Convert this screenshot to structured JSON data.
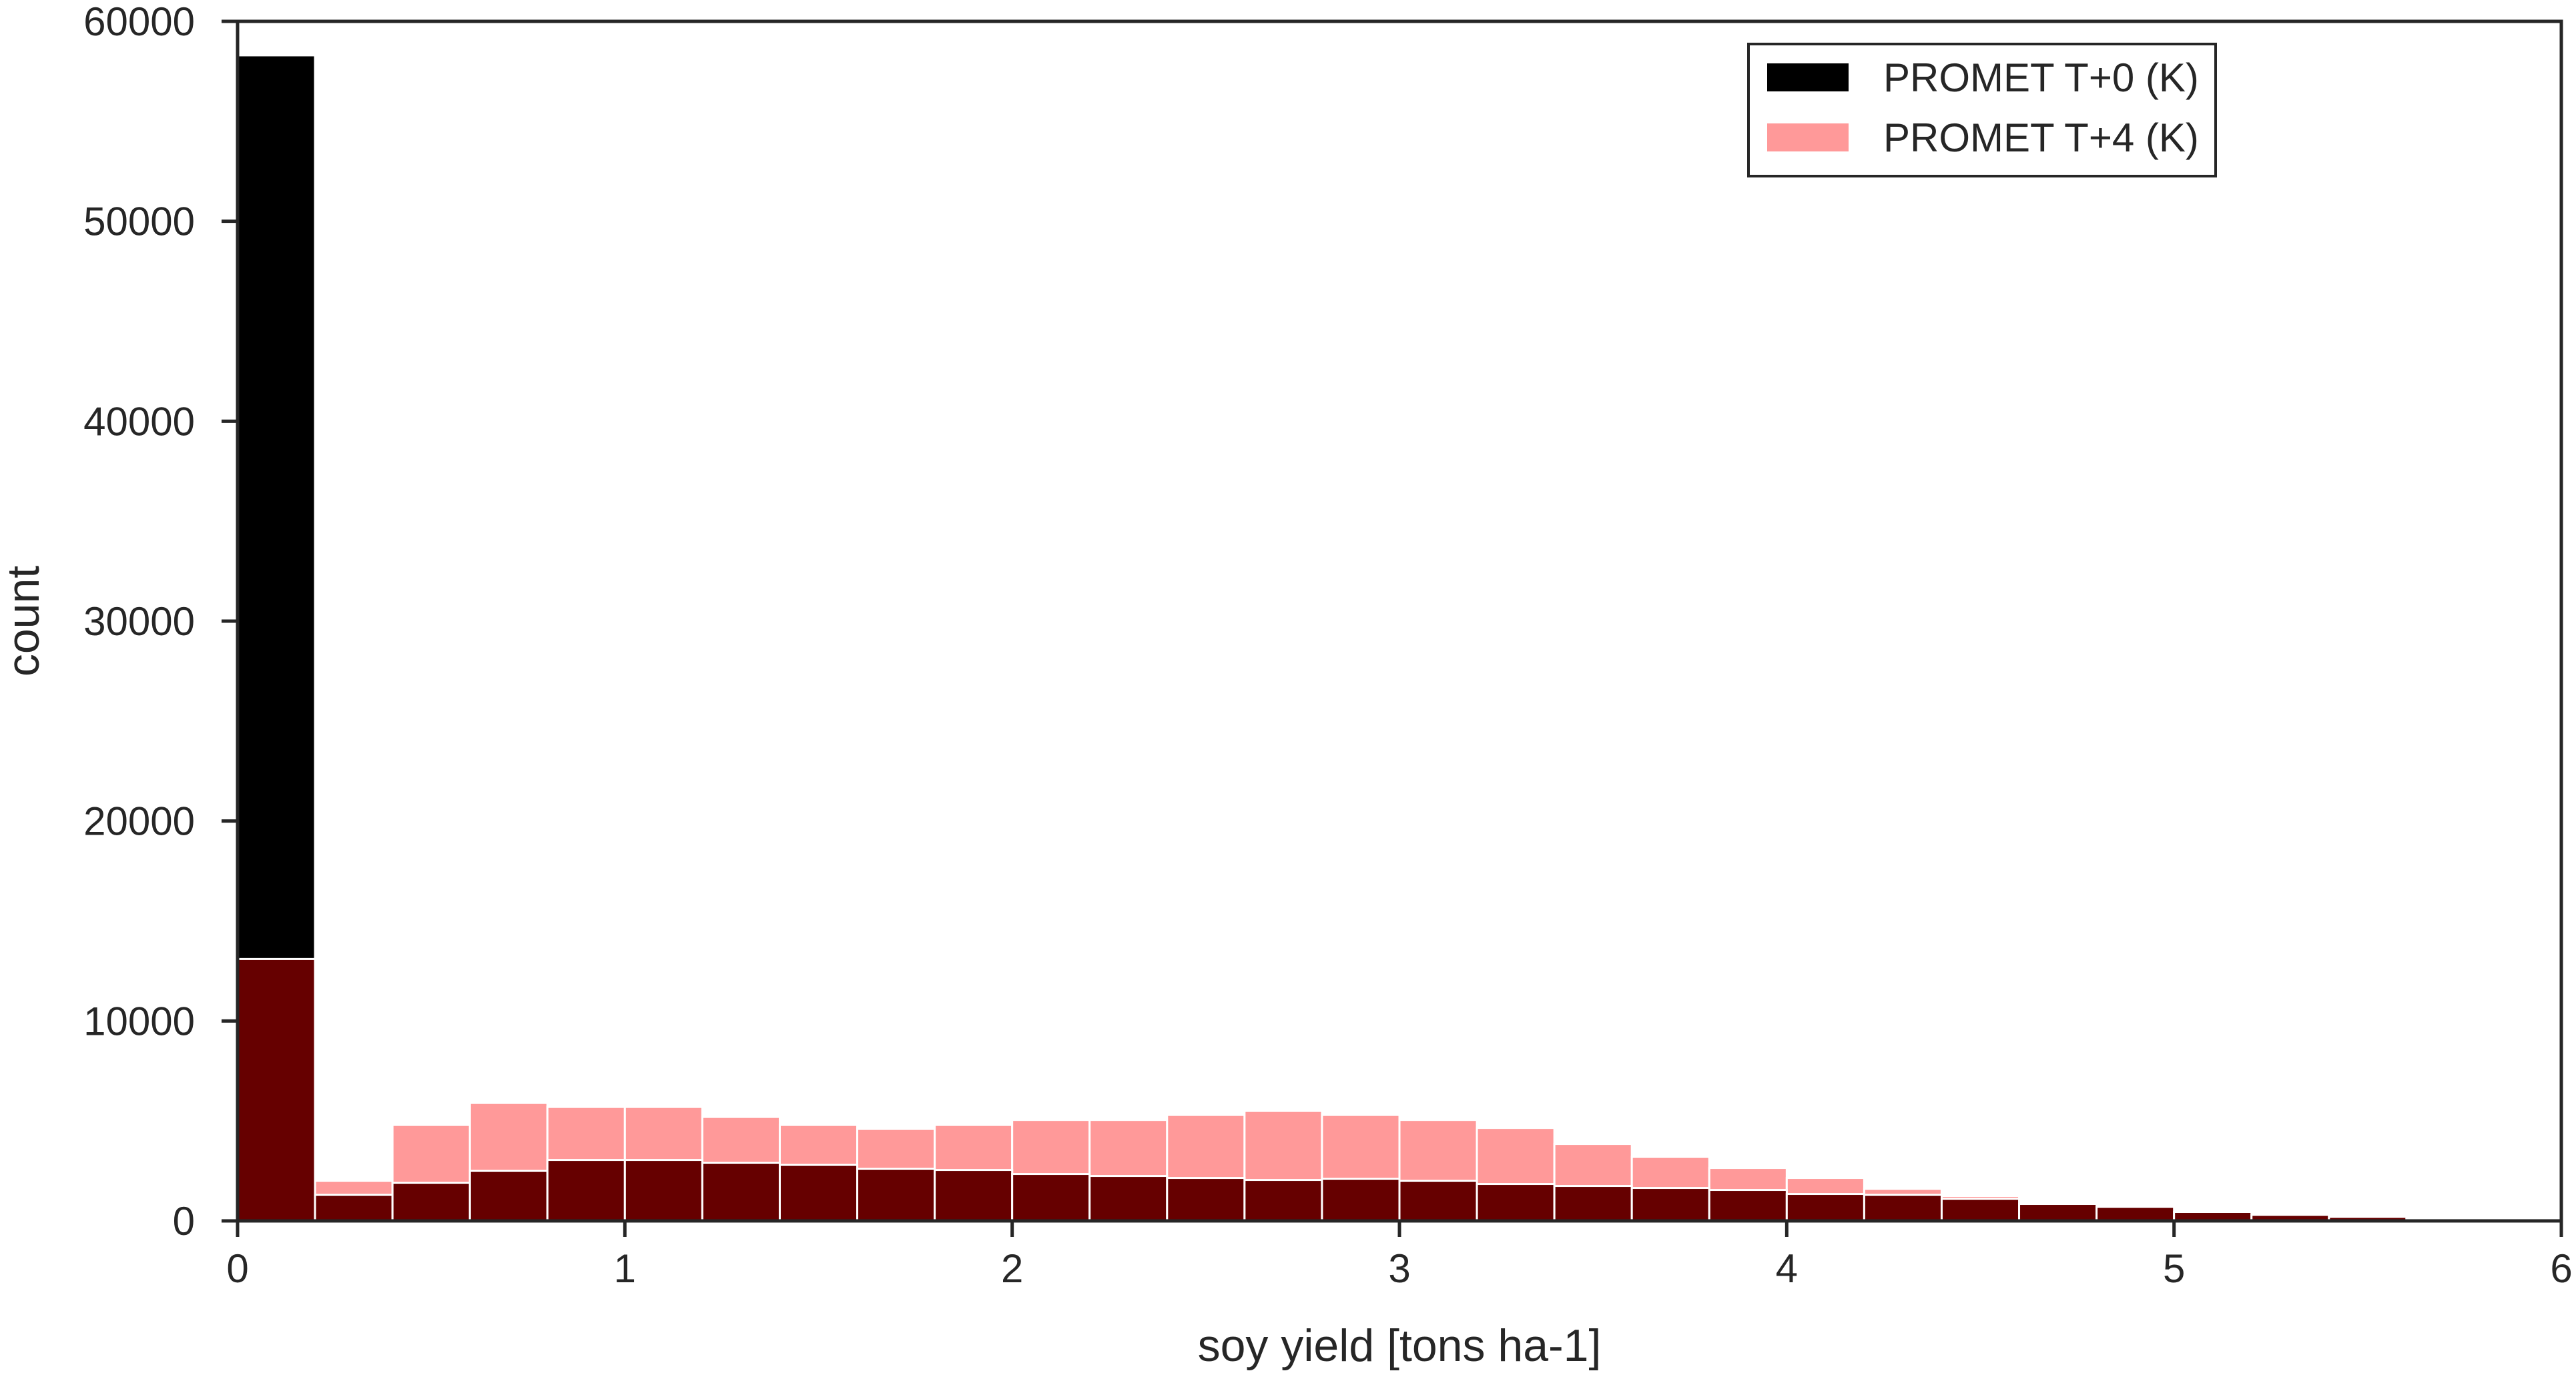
{
  "chart_data": {
    "type": "histogram",
    "title": "",
    "xlabel": "soy yield [tons ha-1]",
    "ylabel": "count",
    "xlim": [
      0,
      6
    ],
    "ylim": [
      0,
      60000
    ],
    "xticks": [
      "0",
      "1",
      "2",
      "3",
      "4",
      "5",
      "6"
    ],
    "yticks": [
      "0",
      "10000",
      "20000",
      "30000",
      "40000",
      "50000",
      "60000"
    ],
    "grid": false,
    "legend_position": "top-right",
    "bin_edges": [
      0,
      0.2,
      0.4,
      0.6,
      0.8,
      1.0,
      1.2,
      1.4,
      1.6,
      1.8,
      2.0,
      2.2,
      2.4,
      2.6,
      2.8,
      3.0,
      3.2,
      3.4,
      3.6,
      3.8,
      4.0,
      4.2,
      4.4,
      4.6,
      4.8,
      5.0,
      5.2,
      5.4,
      5.6,
      5.8
    ],
    "series": [
      {
        "name": "PROMET T+0 (K)",
        "color": "#000000",
        "values": [
          58300,
          1300,
          1900,
          2500,
          3050,
          3050,
          2900,
          2800,
          2600,
          2550,
          2350,
          2250,
          2150,
          2050,
          2100,
          2000,
          1850,
          1750,
          1650,
          1550,
          1350,
          1300,
          1100,
          950,
          750,
          550,
          350,
          200,
          80
        ]
      },
      {
        "name": "PROMET T+4 (K)",
        "color": "#ff9999",
        "values": [
          13100,
          2000,
          4800,
          5900,
          5700,
          5700,
          5200,
          4800,
          4600,
          4800,
          5050,
          5050,
          5300,
          5500,
          5300,
          5050,
          4650,
          3850,
          3200,
          2650,
          2150,
          1600,
          1250,
          850,
          700,
          450,
          300,
          200,
          150
        ]
      }
    ],
    "overlap_color": "#660000"
  }
}
